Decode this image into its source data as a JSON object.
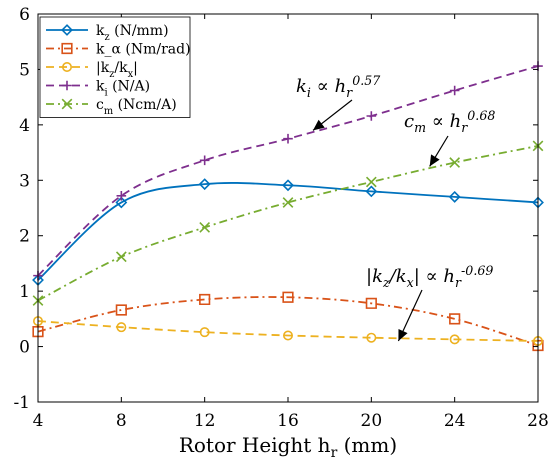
{
  "chart_data": {
    "type": "line",
    "title": "",
    "xlabel": "Rotor Height h_r (mm)",
    "ylabel": "",
    "x": [
      4,
      8,
      12,
      16,
      20,
      24,
      28
    ],
    "xlim": [
      4,
      28
    ],
    "ylim": [
      -1,
      6
    ],
    "xticks": [
      "4",
      "8",
      "12",
      "16",
      "20",
      "24",
      "28"
    ],
    "yticks": [
      "-1",
      "0",
      "1",
      "2",
      "3",
      "4",
      "5",
      "6"
    ],
    "grid": false,
    "legend_position": "top-left",
    "series": [
      {
        "name": "k_z (N/mm)",
        "values": [
          1.2,
          2.6,
          2.93,
          2.91,
          2.8,
          2.7,
          2.6
        ],
        "color": "#0072BD",
        "dash": "solid",
        "marker": "diamond"
      },
      {
        "name": "k_α (Nm/rad)",
        "values": [
          0.27,
          0.66,
          0.85,
          0.89,
          0.78,
          0.5,
          0.02
        ],
        "color": "#D95319",
        "dash": "dashdot",
        "marker": "square"
      },
      {
        "name": "|k_z/k_x|",
        "values": [
          0.46,
          0.35,
          0.26,
          0.2,
          0.16,
          0.13,
          0.1
        ],
        "color": "#EDB120",
        "dash": "dashed",
        "marker": "circle"
      },
      {
        "name": "k_i (N/A)",
        "values": [
          1.28,
          2.72,
          3.36,
          3.75,
          4.16,
          4.62,
          5.06
        ],
        "color": "#7E2F8E",
        "dash": "dashed",
        "marker": "plus"
      },
      {
        "name": "c_m (Ncm/A)",
        "values": [
          0.83,
          1.62,
          2.15,
          2.6,
          2.97,
          3.32,
          3.62
        ],
        "color": "#77AC30",
        "dash": "dashdot",
        "marker": "x"
      }
    ],
    "annotations": [
      {
        "text": "k_i ∝ h_r^0.57",
        "arrow_to": [
          17.2,
          3.9
        ]
      },
      {
        "text": "c_m ∝ h_r^0.68",
        "arrow_to": [
          22.8,
          3.25
        ]
      },
      {
        "text": "|k_z/k_x| ∝ h_r^-0.69",
        "arrow_to": [
          21.3,
          0.1
        ]
      }
    ]
  }
}
